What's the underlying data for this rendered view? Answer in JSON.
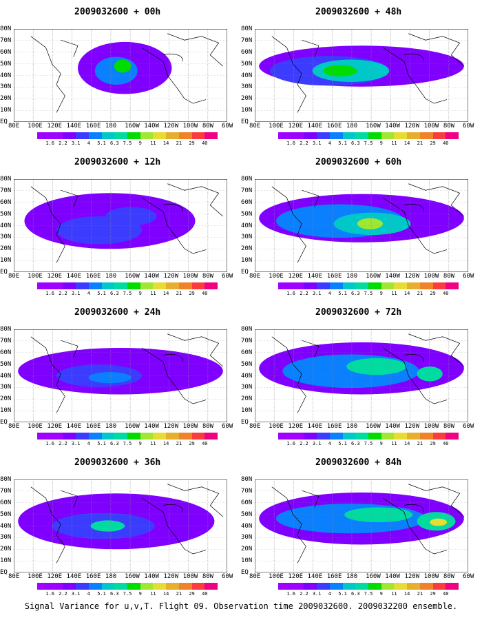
{
  "footer": "Signal Variance for u,v,T. Flight 09. Observation time 2009032600. 2009032200 ensemble.",
  "lat_labels": [
    "80N",
    "70N",
    "60N",
    "50N",
    "40N",
    "30N",
    "20N",
    "10N",
    "EQ"
  ],
  "lon_labels": [
    "80E",
    "100E",
    "120E",
    "140E",
    "160E",
    "180",
    "160W",
    "140W",
    "120W",
    "100W",
    "80W",
    "60W"
  ],
  "colorbar": {
    "labels": [
      "1.6",
      "2.2",
      "3.1",
      "4",
      "5.1",
      "6.3",
      "7.5",
      "9",
      "11",
      "14",
      "21",
      "29",
      "40"
    ],
    "colors": [
      "#a000ff",
      "#8000ff",
      "#3c3cff",
      "#0a80ff",
      "#00c8c8",
      "#00dca0",
      "#00dc00",
      "#a0e632",
      "#e6dc32",
      "#e6af2d",
      "#f08228",
      "#fa3c3c",
      "#f00082"
    ]
  },
  "panels": [
    {
      "title": "2009032600 + 00h"
    },
    {
      "title": "2009032600 + 48h"
    },
    {
      "title": "2009032600 + 12h"
    },
    {
      "title": "2009032600 + 60h"
    },
    {
      "title": "2009032600 + 24h"
    },
    {
      "title": "2009032600 + 72h"
    },
    {
      "title": "2009032600 + 36h"
    },
    {
      "title": "2009032600 + 84h"
    }
  ]
}
